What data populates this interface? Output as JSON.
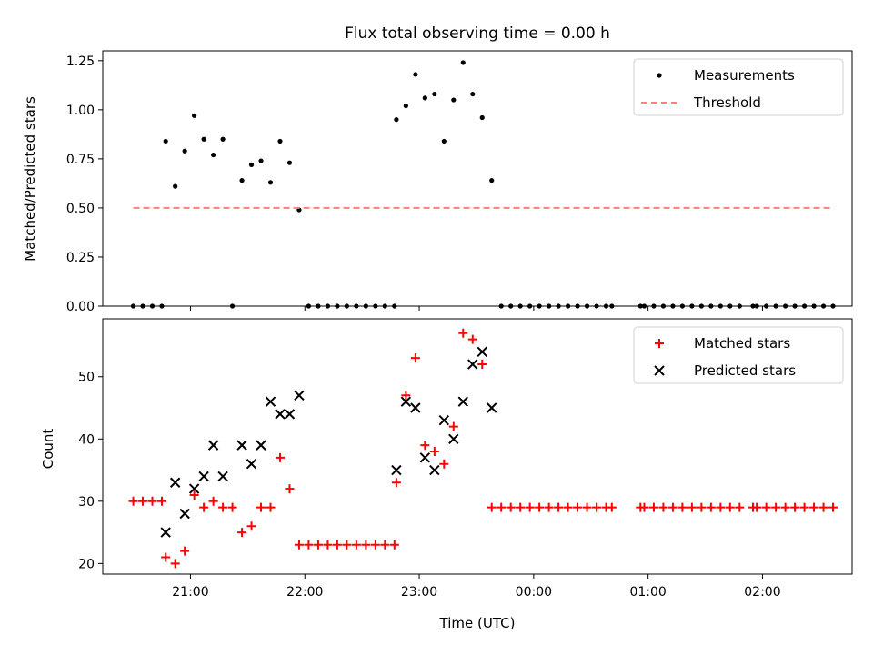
{
  "chart_data": [
    {
      "type": "scatter",
      "title": "Flux total observing time = 0.00 h",
      "xlabel": "",
      "ylabel": "Matched/Predicted stars",
      "ylim": [
        0,
        1.3
      ],
      "y_ticks": [
        "0.00",
        "0.25",
        "0.50",
        "0.75",
        "1.00",
        "1.25"
      ],
      "legend": {
        "placement": "top-right",
        "entries": [
          "Measurements",
          "Threshold"
        ]
      },
      "series": [
        {
          "name": "Measurements",
          "marker": "dot",
          "color": "#000000",
          "points": [
            [
              "20:30",
              0
            ],
            [
              "20:35",
              0
            ],
            [
              "20:40",
              0
            ],
            [
              "20:45",
              0
            ],
            [
              "20:47",
              0.84
            ],
            [
              "20:52",
              0.61
            ],
            [
              "20:57",
              0.79
            ],
            [
              "21:02",
              0.97
            ],
            [
              "21:07",
              0.85
            ],
            [
              "21:12",
              0.77
            ],
            [
              "21:17",
              0.85
            ],
            [
              "21:22",
              0
            ],
            [
              "21:27",
              0.64
            ],
            [
              "21:32",
              0.72
            ],
            [
              "21:37",
              0.74
            ],
            [
              "21:42",
              0.63
            ],
            [
              "21:47",
              0.84
            ],
            [
              "21:52",
              0.73
            ],
            [
              "21:57",
              0.49
            ],
            [
              "22:02",
              0
            ],
            [
              "22:07",
              0
            ],
            [
              "22:12",
              0
            ],
            [
              "22:17",
              0
            ],
            [
              "22:22",
              0
            ],
            [
              "22:27",
              0
            ],
            [
              "22:32",
              0
            ],
            [
              "22:37",
              0
            ],
            [
              "22:42",
              0
            ],
            [
              "22:47",
              0
            ],
            [
              "22:48",
              0.95
            ],
            [
              "22:53",
              1.02
            ],
            [
              "22:58",
              1.18
            ],
            [
              "23:03",
              1.06
            ],
            [
              "23:08",
              1.08
            ],
            [
              "23:13",
              0.84
            ],
            [
              "23:18",
              1.05
            ],
            [
              "23:23",
              1.24
            ],
            [
              "23:28",
              1.08
            ],
            [
              "23:33",
              0.96
            ],
            [
              "23:38",
              0.64
            ],
            [
              "23:43",
              0
            ],
            [
              "23:48",
              0
            ],
            [
              "23:53",
              0
            ],
            [
              "23:58",
              0
            ],
            [
              "00:03",
              0
            ],
            [
              "00:08",
              0
            ],
            [
              "00:13",
              0
            ],
            [
              "00:18",
              0
            ],
            [
              "00:23",
              0
            ],
            [
              "00:28",
              0
            ],
            [
              "00:33",
              0
            ],
            [
              "00:38",
              0
            ],
            [
              "00:41",
              0
            ],
            [
              "00:56",
              0
            ],
            [
              "00:58",
              0
            ],
            [
              "01:03",
              0
            ],
            [
              "01:08",
              0
            ],
            [
              "01:13",
              0
            ],
            [
              "01:18",
              0
            ],
            [
              "01:23",
              0
            ],
            [
              "01:28",
              0
            ],
            [
              "01:33",
              0
            ],
            [
              "01:38",
              0
            ],
            [
              "01:43",
              0
            ],
            [
              "01:48",
              0
            ],
            [
              "01:55",
              0
            ],
            [
              "01:57",
              0
            ],
            [
              "02:02",
              0
            ],
            [
              "02:07",
              0
            ],
            [
              "02:12",
              0
            ],
            [
              "02:17",
              0
            ],
            [
              "02:22",
              0
            ],
            [
              "02:27",
              0
            ],
            [
              "02:32",
              0
            ],
            [
              "02:37",
              0
            ]
          ]
        },
        {
          "name": "Threshold",
          "type": "line",
          "style": "dashed",
          "color": "#ff7f7f",
          "points": [
            [
              "20:30",
              0.5
            ],
            [
              "02:37",
              0.5
            ]
          ]
        }
      ]
    },
    {
      "type": "scatter",
      "title": "",
      "xlabel": "Time (UTC)",
      "ylabel": "Count",
      "ylim": [
        18.3,
        59.3
      ],
      "y_ticks": [
        "20",
        "30",
        "40",
        "50"
      ],
      "x_ticks": [
        "21:00",
        "22:00",
        "23:00",
        "00:00",
        "01:00",
        "02:00"
      ],
      "xlim": [
        "20:14",
        "02:47"
      ],
      "legend": {
        "placement": "top-right",
        "entries": [
          "Matched stars",
          "Predicted stars"
        ]
      },
      "series": [
        {
          "name": "Matched stars",
          "marker": "plus",
          "color": "#ff0000",
          "points": [
            [
              "20:30",
              30
            ],
            [
              "20:35",
              30
            ],
            [
              "20:40",
              30
            ],
            [
              "20:45",
              30
            ],
            [
              "20:47",
              21
            ],
            [
              "20:52",
              20
            ],
            [
              "20:57",
              22
            ],
            [
              "21:02",
              31
            ],
            [
              "21:07",
              29
            ],
            [
              "21:12",
              30
            ],
            [
              "21:17",
              29
            ],
            [
              "21:22",
              29
            ],
            [
              "21:27",
              25
            ],
            [
              "21:32",
              26
            ],
            [
              "21:37",
              29
            ],
            [
              "21:42",
              29
            ],
            [
              "21:47",
              37
            ],
            [
              "21:52",
              32
            ],
            [
              "21:57",
              23
            ],
            [
              "22:02",
              23
            ],
            [
              "22:07",
              23
            ],
            [
              "22:12",
              23
            ],
            [
              "22:17",
              23
            ],
            [
              "22:22",
              23
            ],
            [
              "22:27",
              23
            ],
            [
              "22:32",
              23
            ],
            [
              "22:37",
              23
            ],
            [
              "22:42",
              23
            ],
            [
              "22:47",
              23
            ],
            [
              "22:48",
              33
            ],
            [
              "22:53",
              47
            ],
            [
              "22:58",
              53
            ],
            [
              "23:03",
              39
            ],
            [
              "23:08",
              38
            ],
            [
              "23:13",
              36
            ],
            [
              "23:18",
              42
            ],
            [
              "23:23",
              57
            ],
            [
              "23:28",
              56
            ],
            [
              "23:33",
              52
            ],
            [
              "23:38",
              29
            ],
            [
              "23:43",
              29
            ],
            [
              "23:48",
              29
            ],
            [
              "23:53",
              29
            ],
            [
              "23:58",
              29
            ],
            [
              "00:03",
              29
            ],
            [
              "00:08",
              29
            ],
            [
              "00:13",
              29
            ],
            [
              "00:18",
              29
            ],
            [
              "00:23",
              29
            ],
            [
              "00:28",
              29
            ],
            [
              "00:33",
              29
            ],
            [
              "00:38",
              29
            ],
            [
              "00:41",
              29
            ],
            [
              "00:56",
              29
            ],
            [
              "00:58",
              29
            ],
            [
              "01:03",
              29
            ],
            [
              "01:08",
              29
            ],
            [
              "01:13",
              29
            ],
            [
              "01:18",
              29
            ],
            [
              "01:23",
              29
            ],
            [
              "01:28",
              29
            ],
            [
              "01:33",
              29
            ],
            [
              "01:38",
              29
            ],
            [
              "01:43",
              29
            ],
            [
              "01:48",
              29
            ],
            [
              "01:55",
              29
            ],
            [
              "01:57",
              29
            ],
            [
              "02:02",
              29
            ],
            [
              "02:07",
              29
            ],
            [
              "02:12",
              29
            ],
            [
              "02:17",
              29
            ],
            [
              "02:22",
              29
            ],
            [
              "02:27",
              29
            ],
            [
              "02:32",
              29
            ],
            [
              "02:37",
              29
            ]
          ]
        },
        {
          "name": "Predicted stars",
          "marker": "x",
          "color": "#000000",
          "points": [
            [
              "20:47",
              25
            ],
            [
              "20:52",
              33
            ],
            [
              "20:57",
              28
            ],
            [
              "21:02",
              32
            ],
            [
              "21:07",
              34
            ],
            [
              "21:12",
              39
            ],
            [
              "21:17",
              34
            ],
            [
              "21:27",
              39
            ],
            [
              "21:32",
              36
            ],
            [
              "21:37",
              39
            ],
            [
              "21:42",
              46
            ],
            [
              "21:47",
              44
            ],
            [
              "21:52",
              44
            ],
            [
              "21:57",
              47
            ],
            [
              "22:48",
              35
            ],
            [
              "22:53",
              46
            ],
            [
              "22:58",
              45
            ],
            [
              "23:03",
              37
            ],
            [
              "23:08",
              35
            ],
            [
              "23:13",
              43
            ],
            [
              "23:18",
              40
            ],
            [
              "23:23",
              46
            ],
            [
              "23:28",
              52
            ],
            [
              "23:33",
              54
            ],
            [
              "23:38",
              45
            ]
          ]
        }
      ]
    }
  ]
}
